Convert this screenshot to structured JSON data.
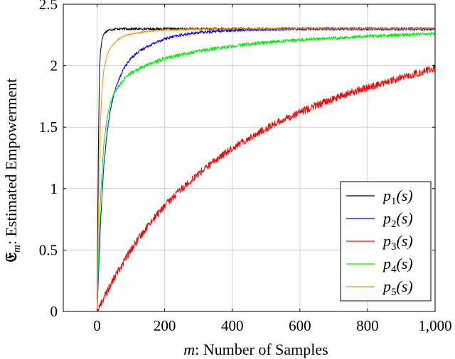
{
  "chart_data": {
    "type": "line",
    "title": "",
    "xlabel_var": "m",
    "xlabel": ": Number of Samples",
    "ylabel_var": "𝔈",
    "ylabel_sub": "m",
    "ylabel": ": Estimated Empowerment",
    "xlim": [
      -100,
      1000
    ],
    "ylim": [
      0,
      2.5
    ],
    "xticks": [
      0,
      200,
      400,
      600,
      800,
      1000
    ],
    "xtick_labels": [
      "0",
      "200",
      "400",
      "600",
      "800",
      "1,000"
    ],
    "yticks": [
      0,
      0.5,
      1,
      1.5,
      2,
      2.5
    ],
    "ytick_labels": [
      "0",
      "0.5",
      "1",
      "1.5",
      "2",
      "2.5"
    ],
    "grid": true,
    "legend_position": "bottom-right",
    "series": [
      {
        "name": "p1(s)",
        "legend_base": "p",
        "legend_sub": "1",
        "legend_arg": "(s)",
        "color": "#000000",
        "x": [
          0,
          2,
          4,
          6,
          8,
          10,
          15,
          20,
          30,
          40,
          60,
          80,
          100,
          200,
          400,
          600,
          800,
          1000
        ],
        "y": [
          0.0,
          0.7,
          1.35,
          1.75,
          2.0,
          2.12,
          2.22,
          2.26,
          2.285,
          2.295,
          2.3,
          2.3,
          2.3,
          2.3,
          2.3,
          2.3,
          2.3,
          2.3
        ]
      },
      {
        "name": "p2(s)",
        "legend_base": "p",
        "legend_sub": "2",
        "legend_arg": "(s)",
        "color": "#0000ff",
        "x": [
          0,
          5,
          10,
          20,
          30,
          40,
          50,
          60,
          80,
          100,
          120,
          150,
          200,
          250,
          300,
          400,
          500,
          600,
          800,
          1000
        ],
        "y": [
          0.0,
          0.35,
          0.72,
          1.19,
          1.47,
          1.65,
          1.77,
          1.86,
          1.98,
          2.06,
          2.11,
          2.16,
          2.22,
          2.25,
          2.27,
          2.29,
          2.295,
          2.3,
          2.3,
          2.3
        ]
      },
      {
        "name": "p3(s)",
        "legend_base": "p",
        "legend_sub": "3",
        "legend_arg": "(s)",
        "color": "#ff0000",
        "x": [
          0,
          25,
          50,
          75,
          100,
          150,
          200,
          250,
          300,
          350,
          400,
          450,
          500,
          550,
          600,
          650,
          700,
          750,
          800,
          850,
          900,
          950,
          1000
        ],
        "y": [
          0.0,
          0.14,
          0.27,
          0.39,
          0.5,
          0.7,
          0.86,
          1.0,
          1.12,
          1.23,
          1.33,
          1.41,
          1.49,
          1.56,
          1.62,
          1.68,
          1.73,
          1.78,
          1.82,
          1.86,
          1.9,
          1.94,
          1.98
        ]
      },
      {
        "name": "p4(s)",
        "legend_base": "p",
        "legend_sub": "4",
        "legend_arg": "(s)",
        "color": "#00ee00",
        "x": [
          0,
          5,
          10,
          20,
          30,
          40,
          50,
          60,
          80,
          100,
          150,
          200,
          300,
          400,
          500,
          600,
          700,
          800,
          900,
          1000
        ],
        "y": [
          0.0,
          0.5,
          0.92,
          1.37,
          1.58,
          1.7,
          1.77,
          1.82,
          1.89,
          1.94,
          2.01,
          2.06,
          2.12,
          2.16,
          2.19,
          2.21,
          2.225,
          2.24,
          2.25,
          2.26
        ]
      },
      {
        "name": "p5(s)",
        "legend_base": "p",
        "legend_sub": "5",
        "legend_arg": "(s)",
        "color": "#ff8c00",
        "x": [
          0,
          3,
          6,
          10,
          15,
          20,
          30,
          40,
          60,
          80,
          100,
          150,
          200,
          250,
          300,
          400,
          600,
          800,
          1000
        ],
        "y": [
          0.0,
          0.6,
          1.1,
          1.55,
          1.82,
          1.97,
          2.09,
          2.15,
          2.21,
          2.24,
          2.26,
          2.28,
          2.29,
          2.295,
          2.3,
          2.3,
          2.3,
          2.3,
          2.3
        ]
      }
    ]
  }
}
